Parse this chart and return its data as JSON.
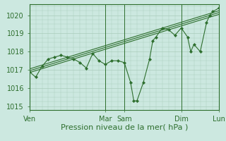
{
  "xlabel": "Pression niveau de la mer( hPa )",
  "background_color": "#cce8e0",
  "line_color": "#2d6e2d",
  "grid_color": "#aaccbb",
  "ylim": [
    1014.8,
    1020.6
  ],
  "xlim": [
    0,
    240
  ],
  "x_tick_positions": [
    0,
    96,
    120,
    192,
    240
  ],
  "x_tick_labels": [
    "Ven",
    "Mar",
    "Sam",
    "Dim",
    "Lun"
  ],
  "yticks": [
    1015,
    1016,
    1017,
    1018,
    1019,
    1020
  ],
  "data_x": [
    0,
    8,
    16,
    24,
    32,
    40,
    48,
    56,
    64,
    72,
    80,
    88,
    96,
    104,
    112,
    120,
    128,
    132,
    136,
    144,
    152,
    156,
    160,
    168,
    176,
    184,
    192,
    200,
    204,
    208,
    216,
    224,
    228,
    232,
    240
  ],
  "data_y": [
    1016.9,
    1016.6,
    1017.2,
    1017.6,
    1017.7,
    1017.8,
    1017.7,
    1017.6,
    1017.4,
    1017.1,
    1017.9,
    1017.5,
    1017.3,
    1017.5,
    1017.5,
    1017.4,
    1016.3,
    1015.3,
    1015.3,
    1016.3,
    1017.6,
    1018.6,
    1018.8,
    1019.3,
    1019.2,
    1018.9,
    1019.3,
    1018.8,
    1018.0,
    1018.4,
    1018.0,
    1019.6,
    1020.0,
    1020.2,
    1020.4
  ],
  "trend_lines": [
    {
      "x0": 0,
      "y0": 1016.85,
      "x1": 240,
      "y1": 1020.05
    },
    {
      "x0": 0,
      "y0": 1017.05,
      "x1": 240,
      "y1": 1020.25
    },
    {
      "x0": 0,
      "y0": 1016.95,
      "x1": 240,
      "y1": 1020.15
    }
  ],
  "vline_positions": [
    96,
    120,
    192,
    240
  ],
  "ylabel_fontsize": 7,
  "tick_fontsize": 7
}
